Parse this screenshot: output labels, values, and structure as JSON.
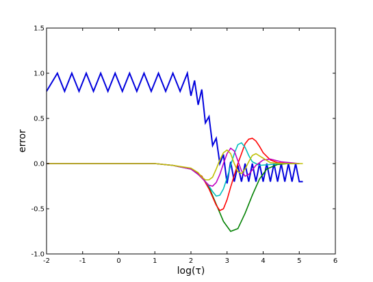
{
  "chart_data": {
    "type": "line",
    "title": "",
    "xlabel": "log(τ)",
    "ylabel": "error",
    "xlim": [
      -2,
      6
    ],
    "ylim": [
      -1.0,
      1.5
    ],
    "grid": false,
    "legend": "none",
    "xticks": [
      "-2",
      "-1",
      "0",
      "1",
      "2",
      "3",
      "4",
      "5",
      "6"
    ],
    "yticks": [
      "-1.0",
      "-0.5",
      "0.0",
      "0.5",
      "1.0",
      "1.5"
    ],
    "series": [
      {
        "color": "#0000dd",
        "x": [
          -2.0,
          -1.7,
          -1.5,
          -1.3,
          -1.1,
          -0.9,
          -0.7,
          -0.5,
          -0.3,
          -0.1,
          0.1,
          0.3,
          0.5,
          0.7,
          0.9,
          1.1,
          1.3,
          1.5,
          1.7,
          1.9,
          2.0,
          2.1,
          2.2,
          2.3,
          2.4,
          2.5,
          2.6,
          2.7,
          2.8,
          2.9,
          3.0,
          3.1,
          3.2,
          3.3,
          3.4,
          3.5,
          3.6,
          3.7,
          3.8,
          3.9,
          4.0,
          4.1,
          4.2,
          4.3,
          4.4,
          4.5,
          4.6,
          4.7,
          4.8,
          4.9,
          5.0,
          5.1
        ],
        "y": [
          0.8,
          1.0,
          0.8,
          1.0,
          0.8,
          1.0,
          0.8,
          1.0,
          0.8,
          1.0,
          0.8,
          1.0,
          0.8,
          1.0,
          0.8,
          1.0,
          0.8,
          1.0,
          0.8,
          1.0,
          0.75,
          0.92,
          0.65,
          0.82,
          0.45,
          0.52,
          0.2,
          0.28,
          0.0,
          0.1,
          -0.22,
          0.02,
          -0.2,
          -0.02,
          -0.2,
          0.0,
          -0.2,
          0.0,
          -0.2,
          0.0,
          -0.2,
          0.0,
          -0.2,
          0.0,
          -0.2,
          0.0,
          -0.2,
          0.0,
          -0.2,
          0.0,
          -0.2,
          -0.2
        ]
      },
      {
        "color": "#008000",
        "x": [
          -2.0,
          1.0,
          1.5,
          2.0,
          2.3,
          2.5,
          2.7,
          2.9,
          3.1,
          3.3,
          3.5,
          3.7,
          3.9,
          4.1,
          4.4,
          4.7,
          5.0
        ],
        "y": [
          0.0,
          0.0,
          -0.02,
          -0.06,
          -0.14,
          -0.26,
          -0.45,
          -0.64,
          -0.75,
          -0.72,
          -0.55,
          -0.35,
          -0.17,
          -0.06,
          -0.01,
          0.0,
          0.0
        ]
      },
      {
        "color": "#ff0000",
        "x": [
          -2.0,
          1.0,
          1.5,
          2.0,
          2.3,
          2.5,
          2.7,
          2.8,
          2.9,
          3.0,
          3.1,
          3.3,
          3.5,
          3.6,
          3.7,
          3.8,
          3.9,
          4.0,
          4.2,
          4.4,
          4.7,
          5.0
        ],
        "y": [
          0.0,
          0.0,
          -0.02,
          -0.06,
          -0.14,
          -0.28,
          -0.46,
          -0.52,
          -0.5,
          -0.4,
          -0.26,
          0.0,
          0.22,
          0.27,
          0.28,
          0.25,
          0.19,
          0.12,
          0.04,
          0.01,
          0.0,
          0.0
        ]
      },
      {
        "color": "#00bfbf",
        "x": [
          -2.0,
          1.0,
          1.5,
          2.0,
          2.3,
          2.5,
          2.6,
          2.7,
          2.8,
          2.9,
          3.0,
          3.1,
          3.2,
          3.3,
          3.4,
          3.5,
          3.6,
          3.7,
          3.9,
          4.2,
          4.5,
          5.0
        ],
        "y": [
          0.0,
          0.0,
          -0.02,
          -0.06,
          -0.15,
          -0.25,
          -0.31,
          -0.36,
          -0.35,
          -0.28,
          -0.16,
          -0.02,
          0.11,
          0.21,
          0.23,
          0.18,
          0.09,
          0.02,
          -0.02,
          -0.01,
          0.0,
          0.0
        ]
      },
      {
        "color": "#bf00bf",
        "x": [
          -2.0,
          1.0,
          1.5,
          2.0,
          2.2,
          2.4,
          2.5,
          2.6,
          2.7,
          2.8,
          2.9,
          3.0,
          3.1,
          3.2,
          3.3,
          3.4,
          3.5,
          3.6,
          3.8,
          4.0,
          4.2,
          4.5,
          5.0
        ],
        "y": [
          0.0,
          0.0,
          -0.02,
          -0.06,
          -0.12,
          -0.2,
          -0.24,
          -0.25,
          -0.21,
          -0.12,
          0.0,
          0.11,
          0.17,
          0.14,
          0.03,
          -0.08,
          -0.14,
          -0.12,
          -0.02,
          0.04,
          0.05,
          0.02,
          0.0
        ]
      },
      {
        "color": "#bfbf00",
        "x": [
          -2.0,
          1.0,
          1.5,
          2.0,
          2.2,
          2.3,
          2.4,
          2.5,
          2.6,
          2.7,
          2.8,
          2.9,
          3.0,
          3.1,
          3.2,
          3.3,
          3.4,
          3.5,
          3.6,
          3.7,
          3.8,
          4.0,
          4.2,
          4.5,
          5.0,
          5.1
        ],
        "y": [
          0.0,
          0.0,
          -0.02,
          -0.05,
          -0.1,
          -0.15,
          -0.18,
          -0.18,
          -0.15,
          -0.06,
          0.04,
          0.12,
          0.15,
          0.11,
          0.0,
          -0.09,
          -0.11,
          -0.06,
          0.02,
          0.09,
          0.11,
          0.06,
          0.01,
          0.0,
          0.0,
          0.0
        ]
      }
    ]
  }
}
